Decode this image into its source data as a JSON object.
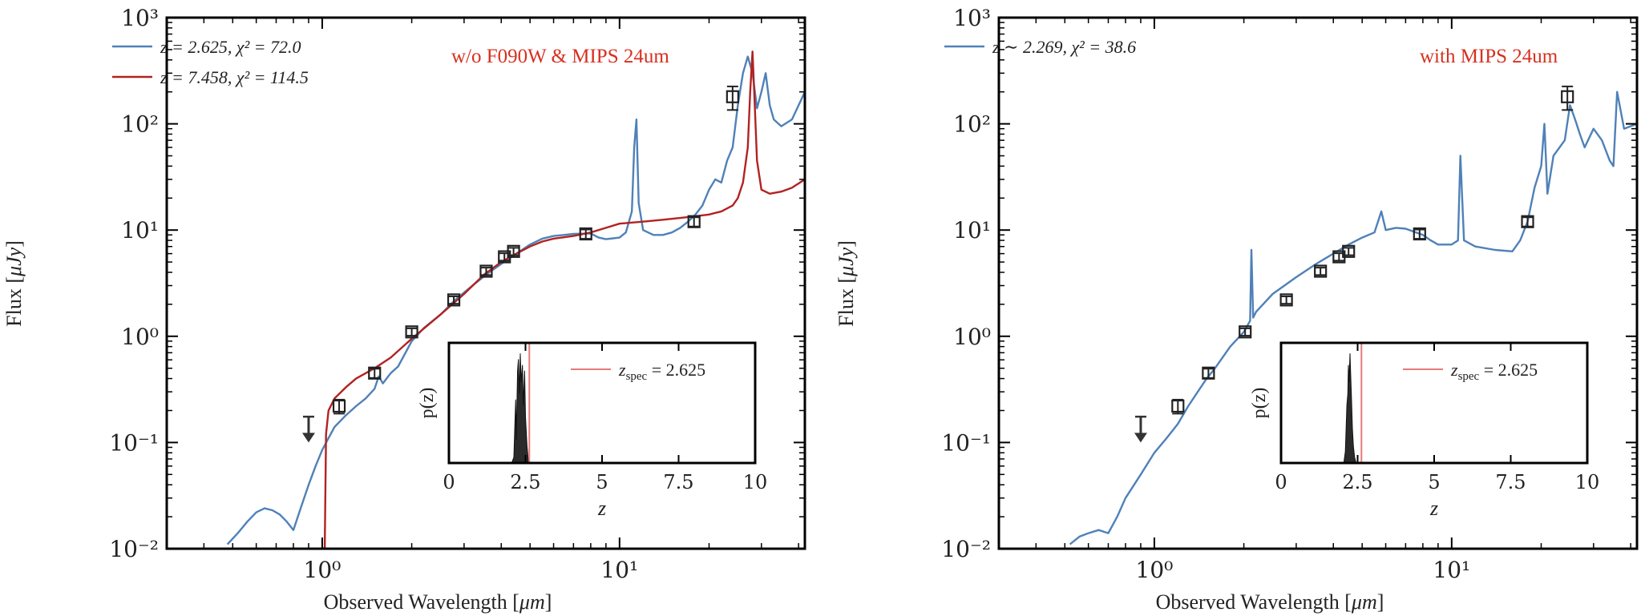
{
  "chart_data": [
    {
      "type": "line",
      "annotation": "w/o F090W & MIPS 24um",
      "annotation_color": "#d7301f",
      "xlabel_prefix": "Observed Wavelength [",
      "xlabel_unit": "μm",
      "xlabel_suffix": "]",
      "ylabel_prefix": "Flux [",
      "ylabel_unit": "μJy",
      "ylabel_suffix": "]",
      "xscale": "log",
      "yscale": "log",
      "xlim": [
        0.3,
        42
      ],
      "ylim": [
        0.01,
        1000
      ],
      "x_tick_values": [
        1,
        10
      ],
      "x_tick_labels": [
        "10⁰",
        "10¹"
      ],
      "y_tick_values": [
        0.01,
        0.1,
        1,
        10,
        100,
        1000
      ],
      "y_tick_labels": [
        "10⁻²",
        "10⁻¹",
        "10⁰",
        "10¹",
        "10²",
        "10³"
      ],
      "legend": [
        {
          "label": "z = 2.625, χ² = 72.0",
          "color": "#4f81b8"
        },
        {
          "label": "z = 7.458, χ² = 114.5",
          "color": "#b22222"
        }
      ],
      "series": [
        {
          "name": "z = 2.625, χ² = 72.0",
          "color": "#4f81b8",
          "x": [
            0.48,
            0.52,
            0.56,
            0.6,
            0.64,
            0.68,
            0.72,
            0.76,
            0.8,
            0.85,
            0.9,
            0.95,
            1.0,
            1.05,
            1.1,
            1.2,
            1.3,
            1.4,
            1.5,
            1.55,
            1.6,
            1.7,
            1.8,
            2.0,
            2.2,
            2.5,
            2.8,
            3.2,
            3.6,
            4.0,
            4.5,
            5.0,
            5.5,
            6.0,
            6.5,
            7.0,
            8.0,
            8.5,
            9.0,
            10.0,
            10.5,
            11.0,
            11.2,
            11.4,
            11.6,
            12.0,
            13.0,
            14.0,
            15.0,
            16.0,
            17.0,
            18.0,
            19.0,
            20.0,
            21.0,
            22.0,
            23.0,
            24.0,
            25.0,
            26.0,
            27.0,
            28.0,
            29.0,
            30.0,
            31.0,
            32.0,
            33.0,
            35.0,
            38.0,
            42.0
          ],
          "y": [
            0.011,
            0.014,
            0.018,
            0.022,
            0.024,
            0.023,
            0.021,
            0.018,
            0.015,
            0.025,
            0.04,
            0.06,
            0.085,
            0.11,
            0.14,
            0.18,
            0.22,
            0.26,
            0.32,
            0.42,
            0.36,
            0.45,
            0.52,
            0.9,
            1.2,
            1.6,
            2.2,
            3.0,
            3.9,
            4.8,
            6.0,
            7.3,
            8.3,
            8.8,
            9.0,
            9.2,
            9.3,
            8.5,
            8.2,
            8.5,
            9.5,
            15,
            60,
            110,
            18,
            10,
            9.0,
            9.0,
            9.5,
            10.5,
            12,
            14,
            17,
            24,
            30,
            28,
            45,
            60,
            150,
            300,
            430,
            300,
            140,
            200,
            300,
            150,
            110,
            95,
            110,
            200
          ]
        },
        {
          "name": "z = 7.458, χ² = 114.5",
          "color": "#b22222",
          "x": [
            1.02,
            1.03,
            1.05,
            1.1,
            1.2,
            1.3,
            1.5,
            1.7,
            2.0,
            2.5,
            3.0,
            3.5,
            4.0,
            4.5,
            5.0,
            5.5,
            6.0,
            7.0,
            8.0,
            9.0,
            10.0,
            12.0,
            14.0,
            16.0,
            18.0,
            20.0,
            22.0,
            24.0,
            25.0,
            26.0,
            27.0,
            27.5,
            28.0,
            28.5,
            29.0,
            30.0,
            32.0,
            35.0,
            38.0,
            42.0
          ],
          "y": [
            0.01,
            0.12,
            0.2,
            0.26,
            0.33,
            0.4,
            0.5,
            0.63,
            0.95,
            1.6,
            2.5,
            3.8,
            5.0,
            6.0,
            7.0,
            7.8,
            8.3,
            8.8,
            9.5,
            10.5,
            11.5,
            12.0,
            12.5,
            13.0,
            13.5,
            14.0,
            15.0,
            17.0,
            20.0,
            28,
            60,
            200,
            480,
            150,
            45,
            24,
            22,
            23,
            25,
            30
          ]
        }
      ],
      "photometry": {
        "x": [
          1.14,
          1.5,
          2.0,
          2.77,
          3.56,
          4.1,
          4.4,
          7.7,
          17.8,
          24.0
        ],
        "y": [
          0.22,
          0.45,
          1.1,
          2.2,
          4.1,
          5.6,
          6.3,
          9.2,
          12,
          180
        ],
        "yerr_frac": [
          0.15,
          0.1,
          0.08,
          0.08,
          0.08,
          0.08,
          0.08,
          0.1,
          0.1,
          0.25
        ]
      },
      "upper_limit": {
        "x": 0.9,
        "y": 0.175,
        "y_end": 0.1
      },
      "inset": {
        "xlabel": "z",
        "ylabel": "p(z)",
        "xlim": [
          0,
          10
        ],
        "x_tick_values": [
          0,
          2.5,
          5,
          7.5,
          10
        ],
        "x_tick_labels": [
          "0",
          "2.5",
          "5",
          "7.5",
          "10"
        ],
        "zspec": 2.625,
        "zspec_label_prefix": "z",
        "zspec_label_sub": "spec",
        "zspec_label_suffix": " = 2.625",
        "pz_x": [
          2.05,
          2.12,
          2.15,
          2.18,
          2.2,
          2.24,
          2.27,
          2.3,
          2.33,
          2.36,
          2.4,
          2.43,
          2.47,
          2.5,
          2.55,
          2.6
        ],
        "pz_y": [
          0,
          0.05,
          0.3,
          0.55,
          0.2,
          0.8,
          0.9,
          0.6,
          0.95,
          0.7,
          0.85,
          0.5,
          0.8,
          0.4,
          0.15,
          0
        ]
      }
    },
    {
      "type": "line",
      "annotation": "with MIPS 24um",
      "annotation_color": "#d7301f",
      "xlabel_prefix": "Observed Wavelength [",
      "xlabel_unit": "μm",
      "xlabel_suffix": "]",
      "ylabel_prefix": "Flux [",
      "ylabel_unit": "μJy",
      "ylabel_suffix": "]",
      "xscale": "log",
      "yscale": "log",
      "xlim": [
        0.3,
        42
      ],
      "ylim": [
        0.01,
        1000
      ],
      "x_tick_values": [
        1,
        10
      ],
      "x_tick_labels": [
        "10⁰",
        "10¹"
      ],
      "y_tick_values": [
        0.01,
        0.1,
        1,
        10,
        100,
        1000
      ],
      "y_tick_labels": [
        "10⁻²",
        "10⁻¹",
        "10⁰",
        "10¹",
        "10²",
        "10³"
      ],
      "legend": [
        {
          "label": "z ∼ 2.269, χ² = 38.6",
          "color": "#4f81b8"
        }
      ],
      "series": [
        {
          "name": "z ∼ 2.269, χ² = 38.6",
          "color": "#4f81b8",
          "x": [
            0.52,
            0.56,
            0.6,
            0.65,
            0.7,
            0.75,
            0.8,
            0.9,
            1.0,
            1.1,
            1.2,
            1.3,
            1.4,
            1.5,
            1.6,
            1.8,
            2.0,
            2.1,
            2.12,
            2.15,
            2.2,
            2.5,
            3.0,
            3.5,
            4.0,
            4.5,
            5.0,
            5.5,
            5.8,
            6.0,
            6.5,
            7.0,
            8.0,
            8.5,
            9.0,
            10.0,
            10.5,
            10.7,
            11.0,
            12.0,
            14.0,
            16.0,
            17.0,
            18.0,
            19.0,
            20.0,
            20.5,
            21.0,
            22.0,
            24.0,
            25.0,
            26.0,
            27.0,
            28.0,
            30.0,
            32.0,
            34.0,
            35.0,
            36.0,
            38.0,
            42.0
          ],
          "y": [
            0.011,
            0.013,
            0.014,
            0.015,
            0.014,
            0.02,
            0.03,
            0.05,
            0.08,
            0.11,
            0.15,
            0.22,
            0.3,
            0.4,
            0.5,
            0.8,
            1.1,
            1.4,
            6.5,
            1.5,
            1.7,
            2.5,
            3.6,
            4.8,
            6.0,
            7.3,
            8.5,
            9.5,
            15,
            10,
            10.5,
            10.3,
            9.0,
            8.0,
            7.3,
            7.3,
            8.0,
            50,
            8.0,
            7.0,
            6.5,
            6.3,
            8.0,
            12,
            25,
            40,
            100,
            22,
            50,
            70,
            150,
            110,
            80,
            60,
            90,
            70,
            45,
            40,
            200,
            90,
            100
          ]
        }
      ],
      "photometry": {
        "x": [
          1.2,
          1.52,
          2.02,
          2.78,
          3.62,
          4.18,
          4.5,
          7.8,
          18.0,
          24.5
        ],
        "y": [
          0.22,
          0.45,
          1.1,
          2.2,
          4.1,
          5.6,
          6.3,
          9.2,
          12,
          180
        ],
        "yerr_frac": [
          0.15,
          0.1,
          0.08,
          0.08,
          0.08,
          0.08,
          0.08,
          0.1,
          0.1,
          0.25
        ]
      },
      "upper_limit": {
        "x": 0.9,
        "y": 0.175,
        "y_end": 0.1
      },
      "inset": {
        "xlabel": "z",
        "ylabel": "p(z)",
        "xlim": [
          0,
          10
        ],
        "x_tick_values": [
          0,
          2.5,
          5,
          7.5,
          10
        ],
        "x_tick_labels": [
          "0",
          "2.5",
          "5",
          "7.5",
          "10"
        ],
        "zspec": 2.625,
        "zspec_label_prefix": "z",
        "zspec_label_sub": "spec",
        "zspec_label_suffix": " = 2.625",
        "pz_x": [
          2.05,
          2.1,
          2.15,
          2.18,
          2.2,
          2.22,
          2.25,
          2.27,
          2.3,
          2.33,
          2.36,
          2.4,
          2.45
        ],
        "pz_y": [
          0,
          0.1,
          0.5,
          0.6,
          0.85,
          0.7,
          0.95,
          0.8,
          0.55,
          0.3,
          0.15,
          0.05,
          0
        ]
      }
    }
  ]
}
